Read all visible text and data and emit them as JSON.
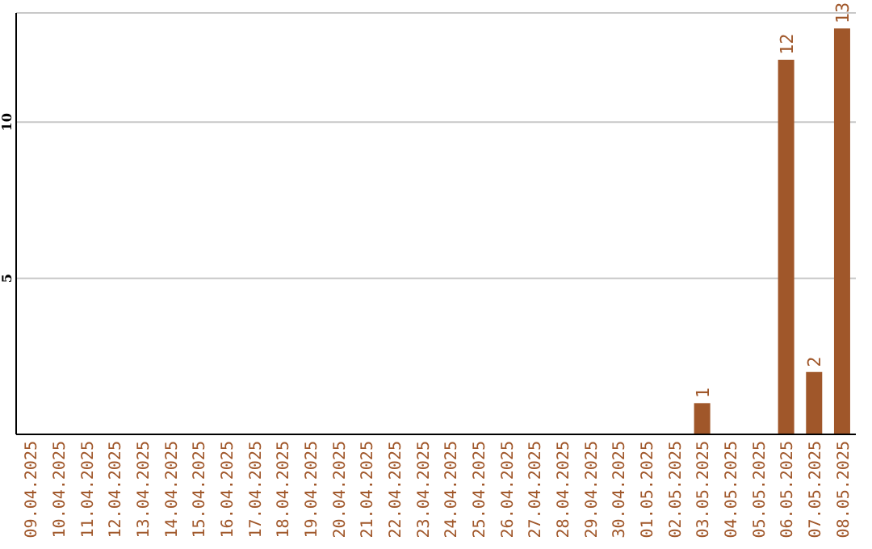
{
  "chart_data": {
    "type": "bar",
    "categories": [
      "09.04.2025",
      "10.04.2025",
      "11.04.2025",
      "12.04.2025",
      "13.04.2025",
      "14.04.2025",
      "15.04.2025",
      "16.04.2025",
      "17.04.2025",
      "18.04.2025",
      "19.04.2025",
      "20.04.2025",
      "21.04.2025",
      "22.04.2025",
      "23.04.2025",
      "24.04.2025",
      "25.04.2025",
      "26.04.2025",
      "27.04.2025",
      "28.04.2025",
      "29.04.2025",
      "30.04.2025",
      "01.05.2025",
      "02.05.2025",
      "03.05.2025",
      "04.05.2025",
      "05.05.2025",
      "06.05.2025",
      "07.05.2025",
      "08.05.2025"
    ],
    "values": [
      0,
      0,
      0,
      0,
      0,
      0,
      0,
      0,
      0,
      0,
      0,
      0,
      0,
      0,
      0,
      0,
      0,
      0,
      0,
      0,
      0,
      0,
      0,
      0,
      1,
      0,
      0,
      12,
      2,
      13
    ],
    "value_labels": [
      null,
      null,
      null,
      null,
      null,
      null,
      null,
      null,
      null,
      null,
      null,
      null,
      null,
      null,
      null,
      null,
      null,
      null,
      null,
      null,
      null,
      null,
      null,
      null,
      "1",
      null,
      null,
      "12",
      "2",
      "13"
    ],
    "color": "#a0572a",
    "ylim": [
      0,
      13.5
    ],
    "yticks": [
      5,
      10
    ],
    "grid": "y"
  }
}
